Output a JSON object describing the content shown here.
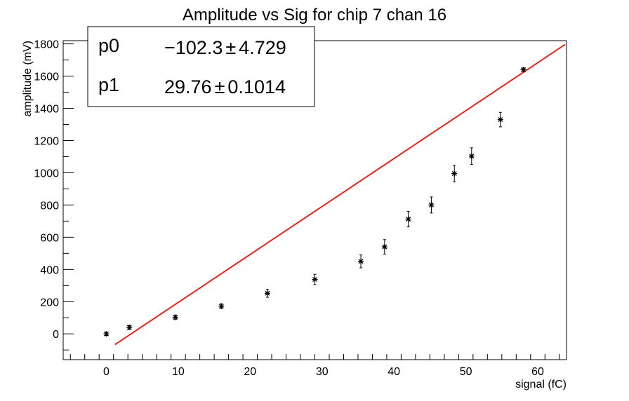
{
  "chart_data": {
    "type": "scatter",
    "title": "Amplitude vs Sig for chip 7 chan 16",
    "xlabel": "signal (fC)",
    "ylabel": "amplitude (mV)",
    "xlim": [
      -6,
      64
    ],
    "ylim": [
      -160,
      1820
    ],
    "x_ticks": [
      0,
      10,
      20,
      30,
      40,
      50,
      60
    ],
    "y_ticks": [
      0,
      200,
      400,
      600,
      800,
      1000,
      1200,
      1400,
      1600,
      1800
    ],
    "x_tick_labels": [
      "0",
      "10",
      "20",
      "30",
      "40",
      "50",
      "60"
    ],
    "y_tick_labels": [
      "0",
      "200",
      "400",
      "600",
      "800",
      "1000",
      "1200",
      "1400",
      "1600",
      "1800"
    ],
    "grid": false,
    "series": [
      {
        "marker": "asterisk",
        "color": "#000000",
        "x": [
          0,
          3.2,
          9.6,
          16.0,
          22.4,
          29.0,
          35.4,
          38.7,
          42.0,
          45.2,
          48.4,
          50.8,
          54.8,
          58.0
        ],
        "y": [
          0,
          40,
          103,
          172,
          252,
          338,
          450,
          540,
          712,
          800,
          995,
          1103,
          1330,
          1640
        ],
        "yerr": [
          10,
          12,
          14,
          15,
          25,
          32,
          40,
          45,
          48,
          50,
          52,
          52,
          45,
          10
        ]
      }
    ],
    "fit": {
      "type": "line",
      "color": "#e8231a",
      "x_range": [
        1.2,
        63.8
      ],
      "slope": 29.76,
      "intercept": -102.3
    },
    "stats_box": {
      "placement": "top-left",
      "rows": [
        {
          "name": "p0",
          "value": "−102.3",
          "pm": "±",
          "err": "4.729"
        },
        {
          "name": "p1",
          "value": "29.76",
          "pm": "±",
          "err": "0.1014"
        }
      ]
    }
  }
}
